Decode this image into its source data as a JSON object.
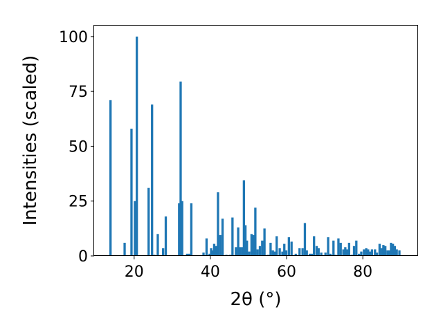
{
  "chart_data": {
    "type": "bar",
    "xlabel": "2θ (°)",
    "ylabel": "Intensities (scaled)",
    "xlim": [
      9.5,
      94.5
    ],
    "ylim": [
      0,
      105
    ],
    "xticks": [
      20,
      40,
      60,
      80
    ],
    "yticks": [
      0,
      25,
      50,
      75,
      100
    ],
    "grid": false,
    "bar_color": "#1f77b4",
    "bar_width": 0.6,
    "x": [
      13.8,
      17.5,
      19.3,
      20.2,
      20.7,
      23.8,
      24.7,
      25.3,
      26.2,
      27.6,
      28.3,
      31.8,
      32.2,
      32.6,
      33.9,
      34.5,
      35.0,
      38.2,
      39.0,
      39.8,
      40.2,
      40.6,
      41.0,
      41.5,
      42.0,
      42.6,
      43.2,
      44.2,
      45.2,
      45.8,
      46.7,
      47.3,
      47.8,
      48.4,
      48.8,
      49.2,
      49.6,
      50.2,
      50.8,
      51.3,
      51.8,
      52.4,
      53.0,
      53.6,
      54.2,
      55.2,
      55.8,
      56.4,
      56.9,
      57.4,
      58.2,
      58.9,
      59.4,
      59.9,
      60.6,
      61.3,
      62.4,
      63.4,
      64.2,
      64.8,
      65.3,
      66.1,
      66.6,
      67.2,
      67.9,
      68.4,
      69.1,
      70.2,
      70.9,
      71.5,
      72.3,
      72.9,
      73.6,
      74.2,
      74.9,
      75.4,
      75.9,
      76.4,
      77.1,
      77.7,
      78.3,
      79.0,
      79.6,
      80.3,
      80.9,
      81.4,
      81.9,
      82.4,
      83.2,
      83.7,
      84.4,
      85.0,
      85.4,
      85.9,
      86.5,
      86.9,
      87.4,
      87.9,
      88.4,
      88.9,
      89.6
    ],
    "values": [
      71.0,
      6.0,
      58.0,
      25.0,
      100.0,
      31.0,
      69.0,
      0.5,
      10.0,
      3.5,
      18.0,
      24.0,
      79.5,
      25.0,
      1.0,
      1.0,
      24.0,
      1.5,
      8.0,
      1.0,
      3.5,
      2.5,
      5.5,
      4.5,
      29.0,
      9.5,
      17.0,
      0.5,
      0.5,
      17.5,
      4.0,
      13.0,
      4.0,
      4.0,
      34.5,
      14.0,
      7.0,
      2.0,
      10.0,
      9.5,
      22.0,
      3.0,
      4.5,
      7.0,
      12.5,
      0.5,
      6.0,
      2.5,
      2.0,
      9.0,
      3.5,
      2.0,
      5.5,
      2.5,
      8.5,
      6.5,
      1.0,
      3.5,
      3.5,
      15.0,
      2.5,
      1.0,
      1.0,
      9.0,
      4.5,
      3.5,
      1.5,
      1.5,
      8.5,
      1.0,
      7.0,
      0.5,
      8.0,
      6.0,
      3.0,
      4.0,
      3.0,
      6.0,
      0.5,
      4.5,
      7.0,
      1.0,
      2.0,
      3.0,
      3.5,
      3.0,
      2.0,
      3.0,
      3.0,
      1.5,
      5.5,
      3.5,
      5.0,
      4.5,
      2.5,
      2.5,
      6.0,
      5.5,
      4.5,
      3.0,
      2.5
    ]
  }
}
